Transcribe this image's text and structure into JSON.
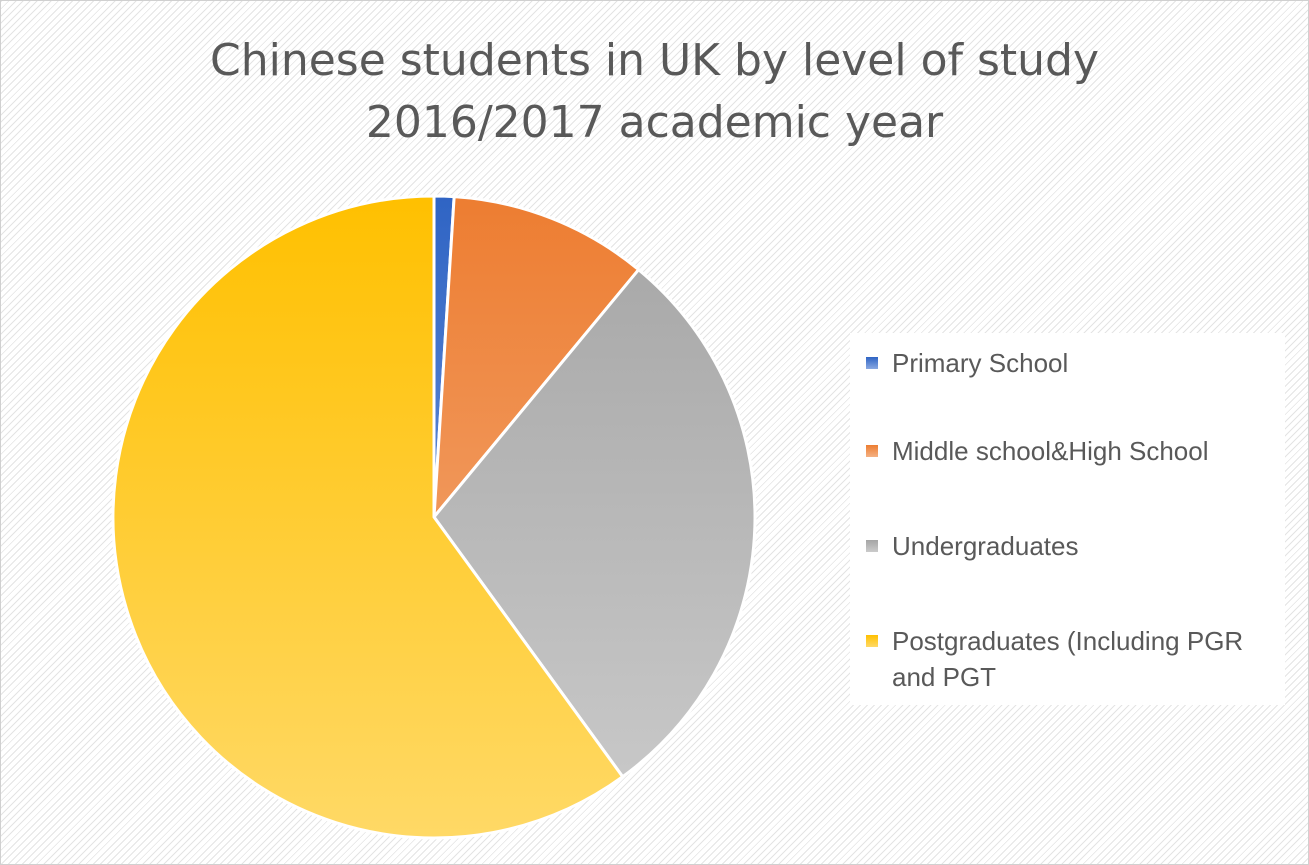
{
  "chart_data": {
    "type": "pie",
    "title": [
      "Chinese students in UK by level of study",
      "2016/2017 academic year"
    ],
    "legend_position": "right",
    "series": [
      {
        "name": "Primary School",
        "value": 1,
        "color_top": "#2f64c4",
        "color_bottom": "#8aa9e2"
      },
      {
        "name": "Middle school&High School",
        "value": 10,
        "color_top": "#ed7d31",
        "color_bottom": "#f4b183"
      },
      {
        "name": "Undergraduates",
        "value": 29,
        "color_top": "#a5a5a5",
        "color_bottom": "#cbcbcb"
      },
      {
        "name": "Postgraduates (Including PGR and PGT",
        "value": 60,
        "color_top": "#ffc000",
        "color_bottom": "#ffd966"
      }
    ]
  }
}
